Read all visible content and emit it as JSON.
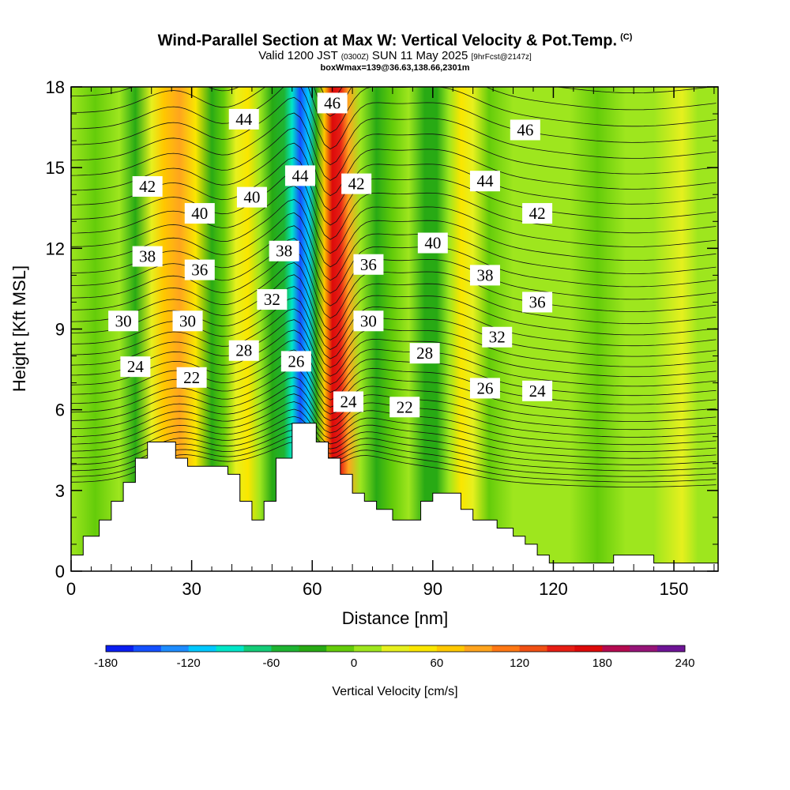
{
  "title": {
    "main": "Wind-Parallel Section at Max W: Vertical Velocity & Pot.Temp.",
    "copyright": "(C)",
    "valid_prefix": "Valid 1200 JST",
    "valid_utc": "(0300Z)",
    "valid_date": "SUN 11 May 2025",
    "forecast": "[9hrFcst@2147z]",
    "box": "boxWmax=139@36.63,138.66,2301m"
  },
  "chart_data": {
    "type": "heatmap",
    "xlabel": "Distance [nm]",
    "ylabel": "Height [Kft MSL]",
    "xlim": [
      0,
      161
    ],
    "ylim": [
      0,
      18
    ],
    "xticks": [
      0,
      30,
      60,
      90,
      120,
      150
    ],
    "yticks": [
      0,
      3,
      6,
      9,
      12,
      15,
      18
    ],
    "colorbar": {
      "title": "Vertical Velocity [cm/s]",
      "min": -180,
      "max": 240,
      "step": 20,
      "tick_values": [
        -180,
        -120,
        -60,
        0,
        60,
        120,
        180,
        240
      ],
      "colors": [
        "#0a1ef0",
        "#1450ff",
        "#1e8cff",
        "#00c8ff",
        "#00e6c8",
        "#14cc78",
        "#1eb432",
        "#28aa14",
        "#64cc0a",
        "#9ee61e",
        "#e6f01e",
        "#fae600",
        "#ffc800",
        "#ffa41e",
        "#ff7814",
        "#f05014",
        "#e61e14",
        "#dc0a0a",
        "#b40a50",
        "#961478",
        "#6e1496"
      ]
    },
    "vertical_velocity_columns": [
      {
        "x": 0,
        "value": 5
      },
      {
        "x": 6,
        "value": -15
      },
      {
        "x": 12,
        "value": 10
      },
      {
        "x": 16,
        "value": -30
      },
      {
        "x": 20,
        "value": 30
      },
      {
        "x": 23,
        "value": 70
      },
      {
        "x": 27,
        "value": 90
      },
      {
        "x": 31,
        "value": 40
      },
      {
        "x": 35,
        "value": -40
      },
      {
        "x": 38,
        "value": -20
      },
      {
        "x": 41,
        "value": 30
      },
      {
        "x": 44,
        "value": 55
      },
      {
        "x": 47,
        "value": 10
      },
      {
        "x": 50,
        "value": -40
      },
      {
        "x": 53,
        "value": -60
      },
      {
        "x": 55,
        "value": -100
      },
      {
        "x": 57,
        "value": -160
      },
      {
        "x": 59,
        "value": -120
      },
      {
        "x": 61,
        "value": -40
      },
      {
        "x": 63,
        "value": 60
      },
      {
        "x": 65,
        "value": 170
      },
      {
        "x": 67,
        "value": 150
      },
      {
        "x": 69,
        "value": 90
      },
      {
        "x": 72,
        "value": 10
      },
      {
        "x": 76,
        "value": -25
      },
      {
        "x": 80,
        "value": -10
      },
      {
        "x": 84,
        "value": 5
      },
      {
        "x": 88,
        "value": -30
      },
      {
        "x": 91,
        "value": -40
      },
      {
        "x": 94,
        "value": 10
      },
      {
        "x": 97,
        "value": 55
      },
      {
        "x": 100,
        "value": 20
      },
      {
        "x": 104,
        "value": -5
      },
      {
        "x": 110,
        "value": 10
      },
      {
        "x": 117,
        "value": 0
      },
      {
        "x": 124,
        "value": 10
      },
      {
        "x": 131,
        "value": -5
      },
      {
        "x": 138,
        "value": 5
      },
      {
        "x": 145,
        "value": 15
      },
      {
        "x": 152,
        "value": 30
      },
      {
        "x": 156,
        "value": 5
      },
      {
        "x": 161,
        "value": 10
      }
    ],
    "terrain": [
      [
        0,
        0.6
      ],
      [
        3,
        0.6
      ],
      [
        3,
        1.3
      ],
      [
        7,
        1.3
      ],
      [
        7,
        1.9
      ],
      [
        10,
        1.9
      ],
      [
        10,
        2.6
      ],
      [
        13,
        2.6
      ],
      [
        13,
        3.3
      ],
      [
        16,
        3.3
      ],
      [
        16,
        4.2
      ],
      [
        19,
        4.2
      ],
      [
        19,
        4.8
      ],
      [
        26,
        4.8
      ],
      [
        26,
        4.2
      ],
      [
        29,
        4.2
      ],
      [
        29,
        3.9
      ],
      [
        39,
        3.9
      ],
      [
        39,
        3.6
      ],
      [
        42,
        3.6
      ],
      [
        42,
        2.6
      ],
      [
        45,
        2.6
      ],
      [
        45,
        1.9
      ],
      [
        48,
        1.9
      ],
      [
        48,
        2.6
      ],
      [
        51,
        2.6
      ],
      [
        51,
        4.2
      ],
      [
        55,
        4.2
      ],
      [
        55,
        5.5
      ],
      [
        61,
        5.5
      ],
      [
        61,
        4.8
      ],
      [
        64,
        4.8
      ],
      [
        64,
        4.2
      ],
      [
        67,
        4.2
      ],
      [
        67,
        3.6
      ],
      [
        70,
        3.6
      ],
      [
        70,
        2.9
      ],
      [
        73,
        2.9
      ],
      [
        73,
        2.6
      ],
      [
        76,
        2.6
      ],
      [
        76,
        2.3
      ],
      [
        80,
        2.3
      ],
      [
        80,
        1.9
      ],
      [
        87,
        1.9
      ],
      [
        87,
        2.6
      ],
      [
        90,
        2.6
      ],
      [
        90,
        2.9
      ],
      [
        97,
        2.9
      ],
      [
        97,
        2.3
      ],
      [
        100,
        2.3
      ],
      [
        100,
        1.9
      ],
      [
        106,
        1.9
      ],
      [
        106,
        1.6
      ],
      [
        110,
        1.6
      ],
      [
        110,
        1.3
      ],
      [
        113,
        1.3
      ],
      [
        113,
        1.0
      ],
      [
        116,
        1.0
      ],
      [
        116,
        0.6
      ],
      [
        119,
        0.6
      ],
      [
        119,
        0.3
      ],
      [
        135,
        0.3
      ],
      [
        135,
        0.6
      ],
      [
        145,
        0.6
      ],
      [
        145,
        0.3
      ],
      [
        161,
        0.3
      ]
    ],
    "theta_labels": [
      {
        "text": "42",
        "x": 19,
        "y": 14.3
      },
      {
        "text": "44",
        "x": 43,
        "y": 16.8
      },
      {
        "text": "46",
        "x": 65,
        "y": 17.4
      },
      {
        "text": "46",
        "x": 113,
        "y": 16.4
      },
      {
        "text": "44",
        "x": 57,
        "y": 14.7
      },
      {
        "text": "42",
        "x": 71,
        "y": 14.4
      },
      {
        "text": "44",
        "x": 103,
        "y": 14.5
      },
      {
        "text": "40",
        "x": 32,
        "y": 13.3
      },
      {
        "text": "40",
        "x": 45,
        "y": 13.9
      },
      {
        "text": "42",
        "x": 116,
        "y": 13.3
      },
      {
        "text": "40",
        "x": 90,
        "y": 12.2
      },
      {
        "text": "38",
        "x": 19,
        "y": 11.7
      },
      {
        "text": "38",
        "x": 53,
        "y": 11.9
      },
      {
        "text": "36",
        "x": 32,
        "y": 11.2
      },
      {
        "text": "36",
        "x": 74,
        "y": 11.4
      },
      {
        "text": "38",
        "x": 103,
        "y": 11.0
      },
      {
        "text": "32",
        "x": 50,
        "y": 10.1
      },
      {
        "text": "36",
        "x": 116,
        "y": 10.0
      },
      {
        "text": "30",
        "x": 13,
        "y": 9.3
      },
      {
        "text": "30",
        "x": 29,
        "y": 9.3
      },
      {
        "text": "30",
        "x": 74,
        "y": 9.3
      },
      {
        "text": "32",
        "x": 106,
        "y": 8.7
      },
      {
        "text": "28",
        "x": 43,
        "y": 8.2
      },
      {
        "text": "26",
        "x": 56,
        "y": 7.8
      },
      {
        "text": "28",
        "x": 88,
        "y": 8.1
      },
      {
        "text": "24",
        "x": 16,
        "y": 7.6
      },
      {
        "text": "22",
        "x": 30,
        "y": 7.2
      },
      {
        "text": "26",
        "x": 103,
        "y": 6.8
      },
      {
        "text": "24",
        "x": 116,
        "y": 6.7
      },
      {
        "text": "24",
        "x": 69,
        "y": 6.3
      },
      {
        "text": "22",
        "x": 83,
        "y": 6.1
      }
    ]
  }
}
